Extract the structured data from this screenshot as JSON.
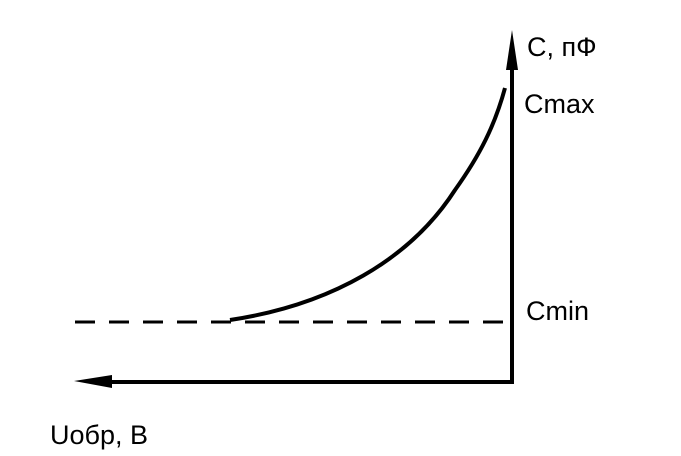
{
  "diagram": {
    "y_axis_label": "C, пФ",
    "x_axis_label": "Uобр, В",
    "cmax_label": "Cmax",
    "cmin_label": "Cmin",
    "line_color": "#000000",
    "background": "#ffffff"
  }
}
